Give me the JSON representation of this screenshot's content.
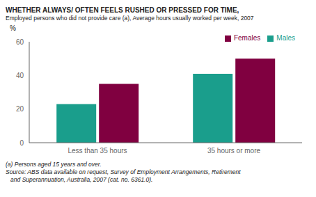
{
  "chart_data": {
    "type": "bar",
    "title": "WHETHER ALWAYS/ OFTEN FEELS RUSHED OR PRESSED FOR TIME,",
    "subtitle": "Employed persons who did not provide care (a), Average hours usually worked per week, 2007",
    "ylabel": "%",
    "categories": [
      "Less than 35 hours",
      "35 hours or more"
    ],
    "series": [
      {
        "name": "Males",
        "color": "#1a9e8c",
        "values": [
          23,
          41
        ]
      },
      {
        "name": "Females",
        "color": "#800040",
        "values": [
          35,
          50
        ]
      }
    ],
    "ylim": [
      0,
      60
    ],
    "yticks": [
      0,
      20,
      40,
      60
    ],
    "legend": "upper right",
    "footnotes": [
      "(a) Persons aged 15 years and over.",
      "Source: ABS data available on request, Survey of Employment Arrangements, Retirement",
      "   and Superannuation, Australia, 2007 (cat. no. 6361.0)."
    ]
  }
}
